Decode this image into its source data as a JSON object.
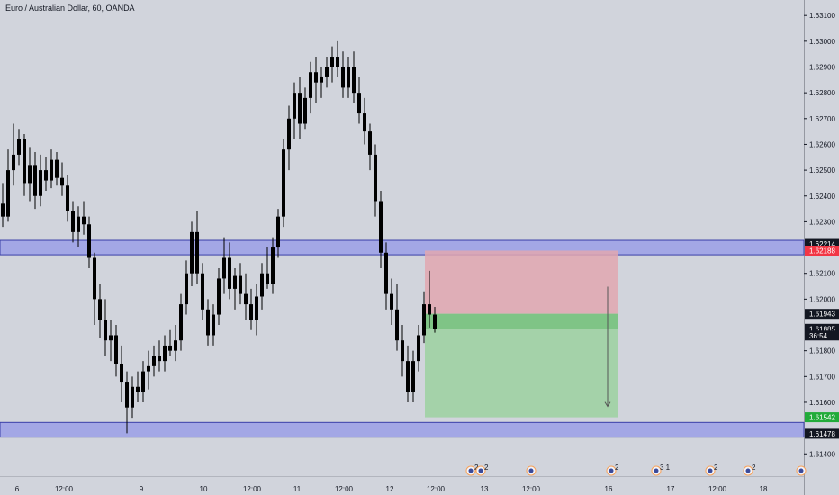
{
  "header": {
    "title": "Euro / Australian Dollar, 60, OANDA"
  },
  "colors": {
    "background": "#d1d4dc",
    "candle": "#000000",
    "zone_fill": "#9b9fe6",
    "zone_border": "#3a3fa8",
    "stop_fill": "#e2a7b0",
    "target_fill": "#9ed1a3",
    "target_deep": "#7bc282",
    "entry_line": "#7fbf7f",
    "tag_dark": "#131722",
    "tag_red": "#f23645",
    "tag_green": "#22ab3a"
  },
  "chart_data": {
    "type": "candlestick",
    "title": "Euro / Australian Dollar, 60, OANDA",
    "ylim": [
      1.6138,
      1.6316
    ],
    "y_ticks": [
      "1.63100",
      "1.63000",
      "1.62900",
      "1.62800",
      "1.62700",
      "1.62600",
      "1.62500",
      "1.62400",
      "1.62300",
      "1.62100",
      "1.62000",
      "1.61800",
      "1.61700",
      "1.61600",
      "1.61400"
    ],
    "x_ticks": [
      "6",
      "12:00",
      "9",
      "10",
      "12:00",
      "11",
      "12:00",
      "12",
      "12:00",
      "13",
      "12:00",
      "16",
      "17",
      "12:00",
      "18"
    ],
    "price_tags": [
      {
        "label": "1.62214",
        "value": 1.62214,
        "style": "dark"
      },
      {
        "label": "1.62188",
        "value": 1.62188,
        "style": "red"
      },
      {
        "label": "1.61943",
        "value": 1.61943,
        "style": "dark"
      },
      {
        "label": "1.61885",
        "value": 1.61885,
        "style": "dark"
      },
      {
        "label": "36:54",
        "value": 1.61859,
        "style": "dark"
      },
      {
        "label": "1.61542",
        "value": 1.61542,
        "style": "green"
      },
      {
        "label": "1.61478",
        "value": 1.61478,
        "style": "dark"
      }
    ],
    "zones": [
      {
        "top": 1.62228,
        "bottom": 1.62172
      },
      {
        "top": 1.61522,
        "bottom": 1.61465
      }
    ],
    "position": {
      "side": "short",
      "entry": 1.61943,
      "stop": 1.62188,
      "target": 1.61542,
      "current": 1.61885
    },
    "event_markers": [
      "2",
      "2",
      "",
      "2",
      "3 1",
      "2",
      "2",
      ""
    ],
    "candles": [
      [
        1.6237,
        1.6245,
        1.6228,
        1.6232
      ],
      [
        1.6232,
        1.6258,
        1.623,
        1.625
      ],
      [
        1.625,
        1.6268,
        1.6244,
        1.6256
      ],
      [
        1.6256,
        1.6266,
        1.6252,
        1.6262
      ],
      [
        1.6262,
        1.6264,
        1.624,
        1.6245
      ],
      [
        1.6245,
        1.6259,
        1.6238,
        1.6252
      ],
      [
        1.6252,
        1.6257,
        1.6235,
        1.624
      ],
      [
        1.624,
        1.6256,
        1.6236,
        1.625
      ],
      [
        1.625,
        1.6255,
        1.6242,
        1.6246
      ],
      [
        1.6246,
        1.6258,
        1.6243,
        1.6254
      ],
      [
        1.6254,
        1.6257,
        1.6244,
        1.6247
      ],
      [
        1.6247,
        1.6253,
        1.624,
        1.6244
      ],
      [
        1.6244,
        1.6248,
        1.623,
        1.6234
      ],
      [
        1.6234,
        1.6238,
        1.6222,
        1.6226
      ],
      [
        1.6226,
        1.6236,
        1.622,
        1.6232
      ],
      [
        1.6232,
        1.6238,
        1.6225,
        1.6229
      ],
      [
        1.6229,
        1.6232,
        1.6212,
        1.6216
      ],
      [
        1.6216,
        1.6218,
        1.619,
        1.62
      ],
      [
        1.62,
        1.6206,
        1.6185,
        1.6192
      ],
      [
        1.6192,
        1.62,
        1.6178,
        1.6184
      ],
      [
        1.6184,
        1.6192,
        1.6176,
        1.6186
      ],
      [
        1.6186,
        1.619,
        1.617,
        1.6175
      ],
      [
        1.6175,
        1.6182,
        1.616,
        1.6168
      ],
      [
        1.6168,
        1.6172,
        1.6148,
        1.6158
      ],
      [
        1.6158,
        1.617,
        1.6154,
        1.6166
      ],
      [
        1.6166,
        1.6172,
        1.616,
        1.6164
      ],
      [
        1.6164,
        1.6176,
        1.616,
        1.6172
      ],
      [
        1.6172,
        1.618,
        1.6165,
        1.6174
      ],
      [
        1.6174,
        1.6182,
        1.617,
        1.6178
      ],
      [
        1.6178,
        1.6184,
        1.6172,
        1.6176
      ],
      [
        1.6176,
        1.6186,
        1.6172,
        1.6182
      ],
      [
        1.6182,
        1.6188,
        1.6178,
        1.618
      ],
      [
        1.618,
        1.619,
        1.6176,
        1.6184
      ],
      [
        1.6184,
        1.6202,
        1.618,
        1.6198
      ],
      [
        1.6198,
        1.6215,
        1.6194,
        1.621
      ],
      [
        1.621,
        1.623,
        1.6205,
        1.6226
      ],
      [
        1.6226,
        1.6234,
        1.6206,
        1.621
      ],
      [
        1.621,
        1.6214,
        1.6192,
        1.6196
      ],
      [
        1.6196,
        1.62,
        1.6182,
        1.6186
      ],
      [
        1.6186,
        1.6198,
        1.6182,
        1.6194
      ],
      [
        1.6194,
        1.6212,
        1.619,
        1.6208
      ],
      [
        1.6208,
        1.6224,
        1.6202,
        1.6216
      ],
      [
        1.6216,
        1.6222,
        1.62,
        1.6204
      ],
      [
        1.6204,
        1.6212,
        1.6196,
        1.6209
      ],
      [
        1.6209,
        1.6214,
        1.6198,
        1.6202
      ],
      [
        1.6202,
        1.621,
        1.6192,
        1.6198
      ],
      [
        1.6198,
        1.6204,
        1.6188,
        1.6192
      ],
      [
        1.6192,
        1.6206,
        1.6186,
        1.6201
      ],
      [
        1.6201,
        1.6214,
        1.6196,
        1.621
      ],
      [
        1.621,
        1.622,
        1.6204,
        1.6206
      ],
      [
        1.6206,
        1.6224,
        1.6202,
        1.622
      ],
      [
        1.622,
        1.6235,
        1.6216,
        1.6232
      ],
      [
        1.6232,
        1.6262,
        1.6228,
        1.6258
      ],
      [
        1.6258,
        1.6275,
        1.625,
        1.627
      ],
      [
        1.627,
        1.6284,
        1.6262,
        1.628
      ],
      [
        1.628,
        1.6286,
        1.6262,
        1.6268
      ],
      [
        1.6268,
        1.6282,
        1.6266,
        1.6278
      ],
      [
        1.6278,
        1.6292,
        1.6272,
        1.6288
      ],
      [
        1.6288,
        1.6294,
        1.6276,
        1.6284
      ],
      [
        1.6284,
        1.629,
        1.6278,
        1.6286
      ],
      [
        1.6286,
        1.6294,
        1.6282,
        1.629
      ],
      [
        1.629,
        1.6298,
        1.6284,
        1.6294
      ],
      [
        1.6294,
        1.63,
        1.6286,
        1.629
      ],
      [
        1.629,
        1.6296,
        1.6278,
        1.6282
      ],
      [
        1.6282,
        1.6294,
        1.6278,
        1.629
      ],
      [
        1.629,
        1.6296,
        1.6276,
        1.628
      ],
      [
        1.628,
        1.6286,
        1.6268,
        1.6272
      ],
      [
        1.6272,
        1.6278,
        1.626,
        1.6265
      ],
      [
        1.6265,
        1.6268,
        1.625,
        1.6256
      ],
      [
        1.6256,
        1.626,
        1.6232,
        1.6238
      ],
      [
        1.6238,
        1.6242,
        1.6212,
        1.6218
      ],
      [
        1.6218,
        1.6222,
        1.6196,
        1.6202
      ],
      [
        1.6202,
        1.6208,
        1.619,
        1.6196
      ],
      [
        1.6196,
        1.6206,
        1.618,
        1.6184
      ],
      [
        1.6184,
        1.619,
        1.617,
        1.6176
      ],
      [
        1.6176,
        1.6182,
        1.616,
        1.6164
      ],
      [
        1.6164,
        1.618,
        1.616,
        1.6176
      ],
      [
        1.6176,
        1.619,
        1.6172,
        1.6186
      ],
      [
        1.6186,
        1.6203,
        1.6183,
        1.6198
      ],
      [
        1.6198,
        1.6211,
        1.6189,
        1.6194
      ],
      [
        1.6194,
        1.6197,
        1.6187,
        1.61885
      ]
    ]
  }
}
